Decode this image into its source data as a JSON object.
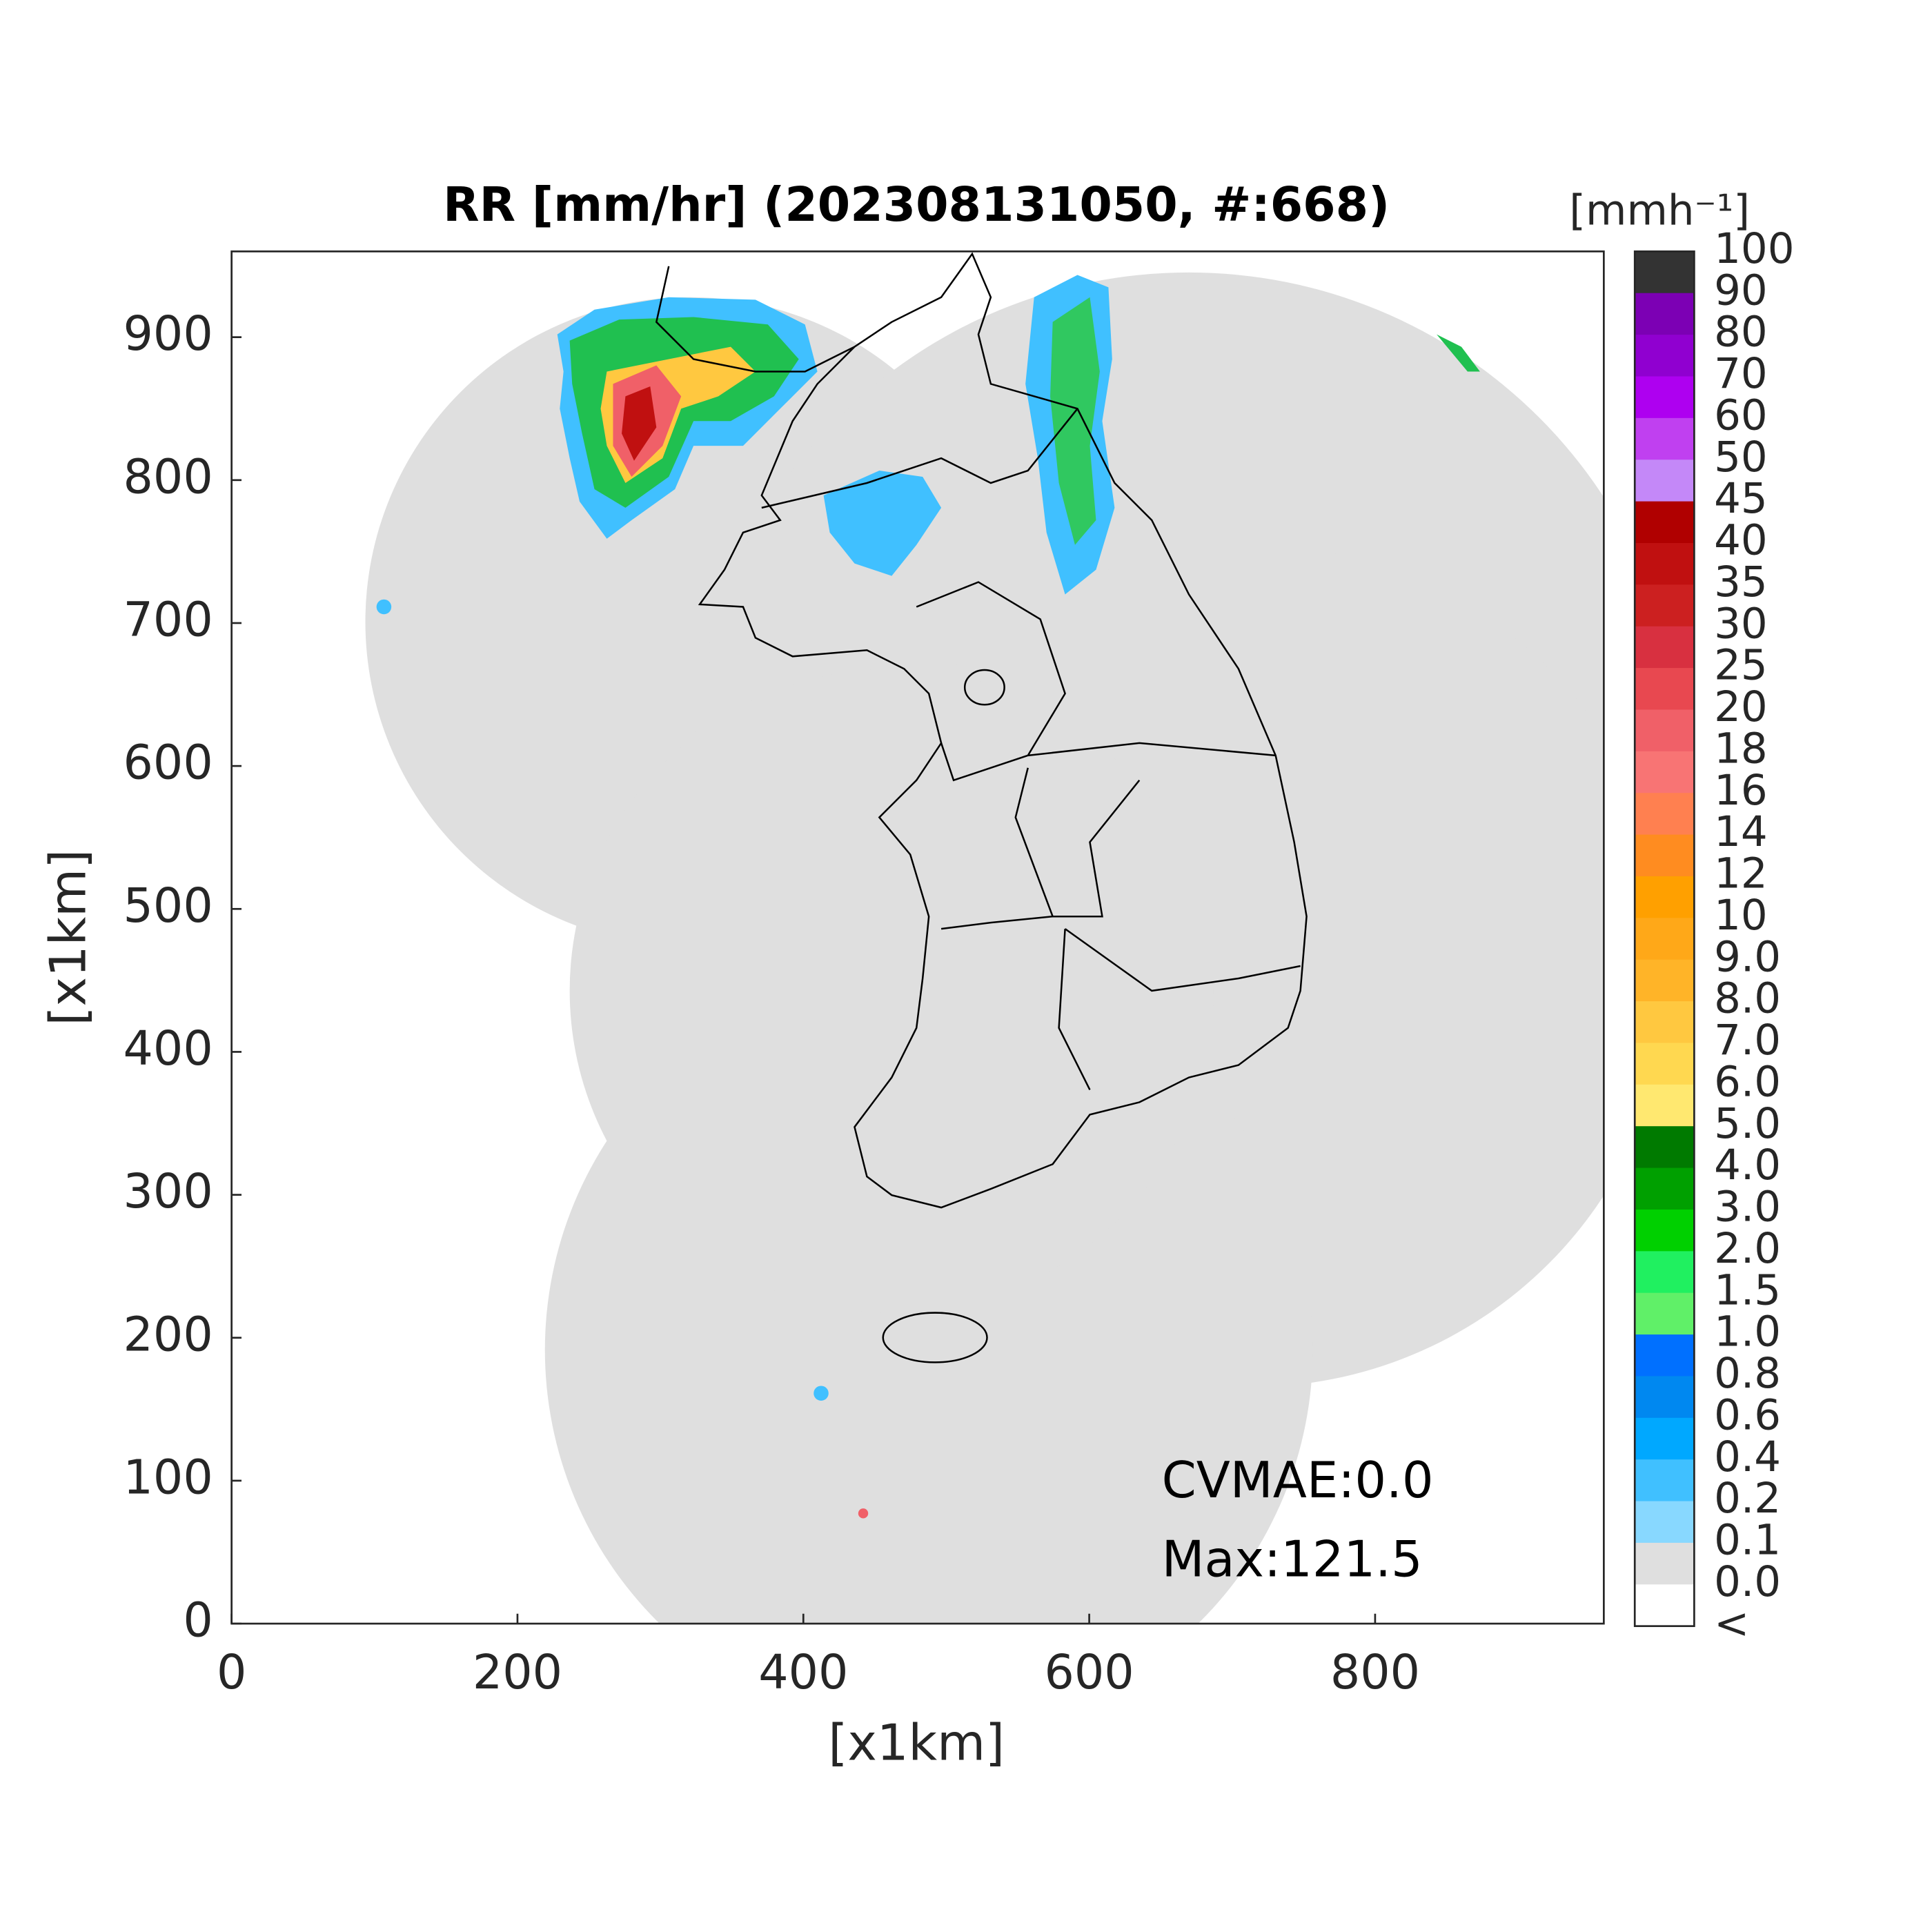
{
  "chart_data": {
    "type": "map",
    "title": "RR [mm/hr] (202308131050, #:668)",
    "xlabel": "[x1km]",
    "ylabel": "[x1km]",
    "xlim": [
      0,
      960
    ],
    "ylim": [
      0,
      960
    ],
    "xticks": [
      0,
      200,
      400,
      600,
      800
    ],
    "yticks": [
      0,
      100,
      200,
      300,
      400,
      500,
      600,
      700,
      800,
      900
    ],
    "annotations": [
      "CVMAE:0.0",
      "Max:121.5"
    ],
    "colorbar": {
      "unit": "[mmh⁻¹]",
      "labels": [
        "100",
        "90",
        "80",
        "70",
        "60",
        "50",
        "45",
        "40",
        "35",
        "30",
        "25",
        "20",
        "18",
        "16",
        "14",
        "12",
        "10",
        "9.0",
        "8.0",
        "7.0",
        "6.0",
        "5.0",
        "4.0",
        "3.0",
        "2.0",
        "1.5",
        "1.0",
        "0.8",
        "0.6",
        "0.4",
        "0.2",
        "0.1",
        "0.0",
        "<"
      ],
      "colors": [
        "#333333",
        "#7c00b4",
        "#9000d0",
        "#ae00f0",
        "#c040f0",
        "#c488f8",
        "#b00000",
        "#c01010",
        "#cc2020",
        "#d83040",
        "#e84850",
        "#f06068",
        "#f87474",
        "#ff8050",
        "#ff8c20",
        "#ffa000",
        "#ffa818",
        "#ffb428",
        "#ffc840",
        "#ffd850",
        "#ffe870",
        "#007a00",
        "#00a000",
        "#00d000",
        "#20f060",
        "#60f068",
        "#0070ff",
        "#0088f0",
        "#00a8ff",
        "#40c0ff",
        "#88d8ff",
        "#dfdfdf",
        "#ffffff"
      ]
    }
  }
}
